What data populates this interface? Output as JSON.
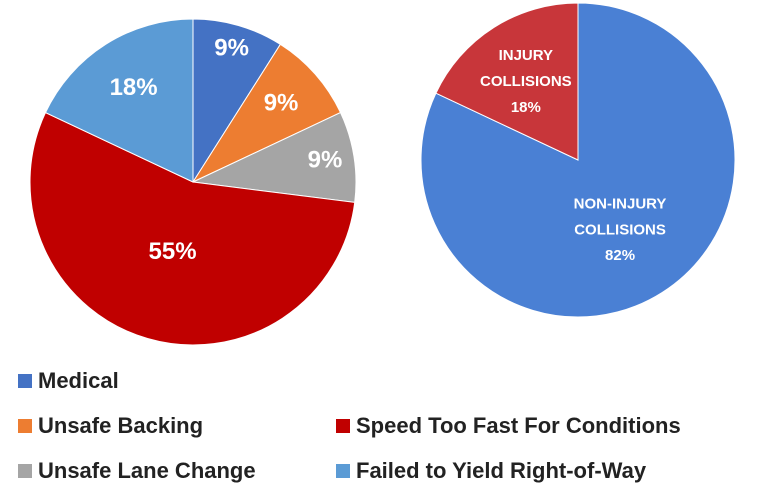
{
  "chart_data": [
    {
      "type": "pie",
      "categories": [
        "Medical",
        "Unsafe Backing",
        "Unsafe Lane Change",
        "Speed Too Fast For Conditions",
        "Failed to Yield Right-of-Way"
      ],
      "values": [
        9,
        9,
        9,
        55,
        18
      ],
      "value_labels": [
        "9%",
        "9%",
        "9%",
        "55%",
        "18%"
      ],
      "colors": [
        "#4472c4",
        "#ed7d31",
        "#a5a5a5",
        "#c00000",
        "#5b9bd5"
      ],
      "legend": "bottom"
    },
    {
      "type": "pie",
      "categories": [
        "NON-INJURY COLLISIONS",
        "INJURY COLLISIONS"
      ],
      "values": [
        82,
        18
      ],
      "value_labels": [
        "82%",
        "18%"
      ],
      "colors": [
        "#4a80d4",
        "#c8363a"
      ]
    }
  ]
}
